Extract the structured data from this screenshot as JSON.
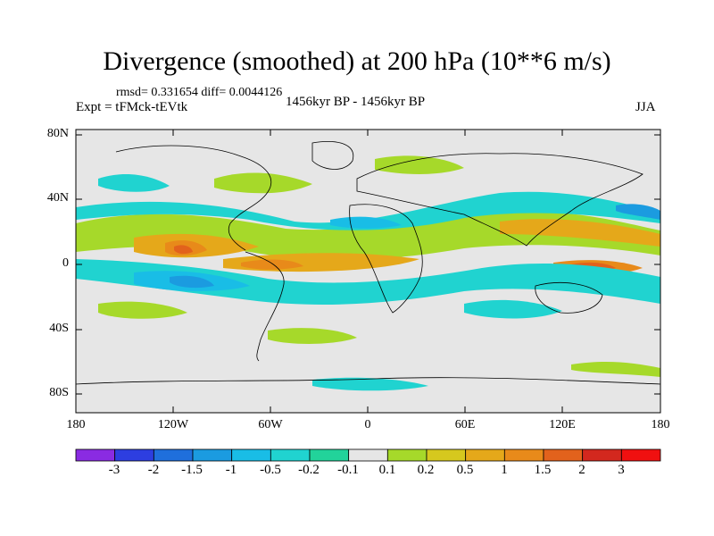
{
  "title": "Divergence (smoothed) at 200 hPa (10**6 m/s)",
  "stats": "rmsd= 0.331654 diff= 0.0044126",
  "experiment": "Expt = tFMck-tEVtk",
  "period": "1456kyr BP - 1456kyr BP",
  "season": "JJA",
  "y_ticks": [
    "80N",
    "40N",
    "0",
    "40S",
    "80S"
  ],
  "x_ticks": [
    "180",
    "120W",
    "60W",
    "0",
    "60E",
    "120E",
    "180"
  ],
  "colorbar": {
    "labels": [
      "-3",
      "-2",
      "-1.5",
      "-1",
      "-0.5",
      "-0.2",
      "-0.1",
      "0.1",
      "0.2",
      "0.5",
      "1",
      "1.5",
      "2",
      "3"
    ],
    "colors": [
      "#8a2be2",
      "#2d3ee0",
      "#1f6fdc",
      "#1b9be0",
      "#19bde6",
      "#20d3d0",
      "#22d39a",
      "#e6e6e6",
      "#a6d92a",
      "#d6c81e",
      "#e5a81a",
      "#e88a1a",
      "#e2621c",
      "#d3281e",
      "#f01010"
    ]
  },
  "colors": {
    "background_field": "#e6e6e6",
    "coast": "#000000"
  }
}
